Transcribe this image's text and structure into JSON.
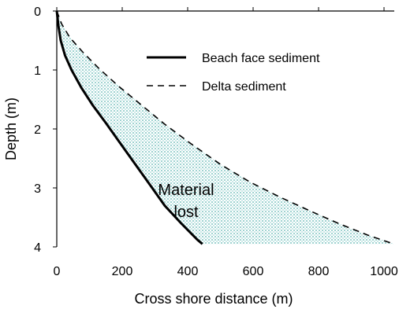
{
  "chart_data": {
    "type": "line",
    "title": "",
    "xlabel": "Cross shore distance (m)",
    "ylabel": "Depth (m)",
    "xlim": [
      0,
      1050
    ],
    "ylim": [
      4,
      0
    ],
    "y_inverted": true,
    "x_axis_position": "top",
    "xticks": [
      0,
      200,
      400,
      600,
      800,
      1000
    ],
    "yticks": [
      0,
      1,
      2,
      3,
      4
    ],
    "grid": false,
    "legend_position": "top-right",
    "series": [
      {
        "name": "Beach face sediment",
        "style": "solid",
        "color": "#000000",
        "x": [
          0,
          5,
          12,
          25,
          45,
          75,
          110,
          150,
          195,
          240,
          285,
          330,
          380,
          430,
          445
        ],
        "y": [
          0,
          0.25,
          0.5,
          0.75,
          1.0,
          1.3,
          1.6,
          1.9,
          2.25,
          2.6,
          2.95,
          3.3,
          3.6,
          3.88,
          3.95
        ]
      },
      {
        "name": "Delta sediment",
        "style": "dashed",
        "color": "#000000",
        "x": [
          0,
          15,
          40,
          80,
          130,
          190,
          260,
          330,
          410,
          500,
          590,
          680,
          770,
          860,
          950,
          1030
        ],
        "y": [
          0,
          0.22,
          0.45,
          0.7,
          0.98,
          1.28,
          1.6,
          1.92,
          2.25,
          2.6,
          2.9,
          3.15,
          3.38,
          3.6,
          3.8,
          3.95
        ]
      }
    ],
    "shaded_region": {
      "between": [
        "Beach face sediment",
        "Delta sediment"
      ],
      "pattern": "dotted",
      "color": "#9fd3d1"
    },
    "annotations": [
      {
        "text": "Material\nlost",
        "x": 320,
        "y": 3.1
      }
    ]
  },
  "labels": {
    "x_title": "Cross shore distance (m)",
    "y_title": "Depth (m)",
    "legend_solid": "Beach face sediment",
    "legend_dashed": "Delta sediment",
    "annot_line1": "Material",
    "annot_line2": "lost"
  }
}
